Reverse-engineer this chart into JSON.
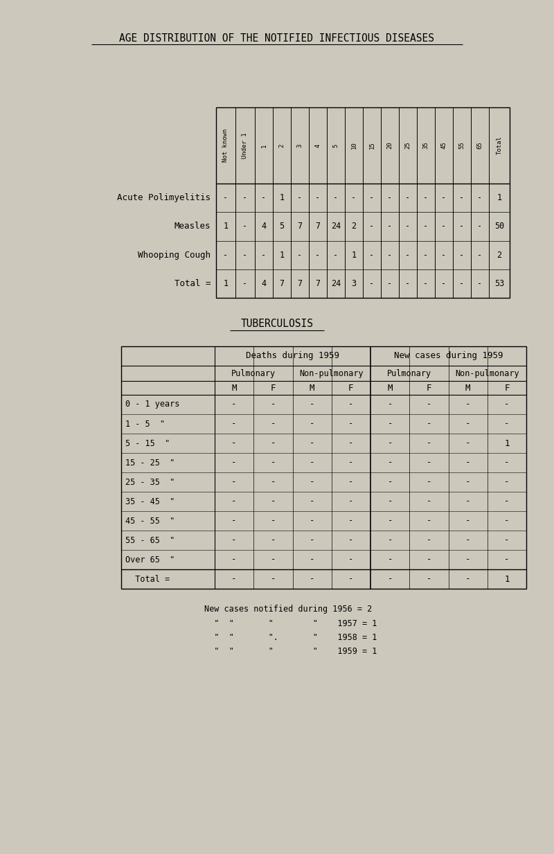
{
  "title": "AGE DISTRIBUTION OF THE NOTIFIED INFECTIOUS DISEASES",
  "bg_color": "#ccc8bc",
  "table1": {
    "col_headers": [
      "Not known",
      "Under 1",
      "1",
      "2",
      "3",
      "4",
      "5",
      "10",
      "15",
      "20",
      "25",
      "35",
      "45",
      "55",
      "65",
      "Total"
    ],
    "rows": [
      {
        "label": "Acute Polimyelitis",
        "values": [
          "-",
          "-",
          "-",
          "1",
          "-",
          "-",
          "-",
          "-",
          "-",
          "-",
          "-",
          "-",
          "-",
          "-",
          "-",
          "1"
        ]
      },
      {
        "label": "Measles",
        "values": [
          "1",
          "-",
          "4",
          "5",
          "7",
          "7",
          "24",
          "2",
          "-",
          "-",
          "-",
          "-",
          "-",
          "-",
          "-",
          "50"
        ]
      },
      {
        "label": "Whooping Cough",
        "values": [
          "-",
          "-",
          "-",
          "1",
          "-",
          "-",
          "-",
          "1",
          "-",
          "-",
          "-",
          "-",
          "-",
          "-",
          "-",
          "2"
        ]
      },
      {
        "label": "Total =",
        "values": [
          "1",
          "-",
          "4",
          "7",
          "7",
          "7",
          "24",
          "3",
          "-",
          "-",
          "-",
          "-",
          "-",
          "-",
          "-",
          "53"
        ]
      }
    ]
  },
  "tb_title": "TUBERCULOSIS",
  "table2": {
    "header1": [
      "Deaths during 1959",
      "New cases during 1959"
    ],
    "header2": [
      "Pulmonary",
      "Non-pulmonary",
      "Pulmonary",
      "Non-pulmonary"
    ],
    "header3": [
      "M",
      "F",
      "M",
      "F",
      "M",
      "F",
      "M",
      "F"
    ],
    "age_rows": [
      "0 - 1 years",
      "1 - 5  \"",
      "5 - 15  \"",
      "15 - 25  \"",
      "25 - 35  \"",
      "35 - 45  \"",
      "45 - 55  \"",
      "55 - 65  \"",
      "Over 65  \""
    ],
    "data": [
      [
        "-",
        "-",
        "-",
        "-",
        "-",
        "-",
        "-",
        "-"
      ],
      [
        "-",
        "-",
        "-",
        "-",
        "-",
        "-",
        "-",
        "-"
      ],
      [
        "-",
        "-",
        "-",
        "-",
        "-",
        "-",
        "-",
        "1"
      ],
      [
        "-",
        "-",
        "-",
        "-",
        "-",
        "-",
        "-",
        "-"
      ],
      [
        "-",
        "-",
        "-",
        "-",
        "-",
        "-",
        "-",
        "-"
      ],
      [
        "-",
        "-",
        "-",
        "-",
        "-",
        "-",
        "-",
        "-"
      ],
      [
        "-",
        "-",
        "-",
        "-",
        "-",
        "-",
        "-",
        "-"
      ],
      [
        "-",
        "-",
        "-",
        "-",
        "-",
        "-",
        "-",
        "-"
      ],
      [
        "-",
        "-",
        "-",
        "-",
        "-",
        "-",
        "-",
        "-"
      ]
    ],
    "total_row": [
      "-",
      "-",
      "-",
      "-",
      "-",
      "-",
      "-",
      "1"
    ]
  },
  "footnotes": [
    "New cases notified during 1956 = 2",
    "\"  \"       \"        \"    1957 = 1",
    "\"  \"       \".       \"    1958 = 1",
    "\"  \"       \"        \"    1959 = 1"
  ]
}
